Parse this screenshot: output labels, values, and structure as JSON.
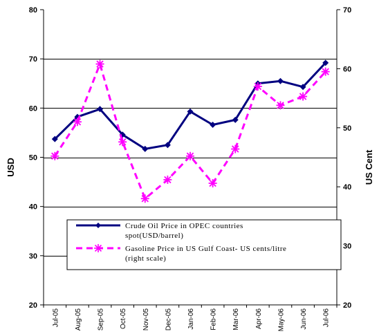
{
  "chart_data": {
    "type": "line",
    "categories": [
      "Jul-05",
      "Aug-05",
      "Sep-05",
      "Oct-05",
      "Nov-05",
      "Dec-05",
      "Jan-06",
      "Feb-06",
      "Mar-06",
      "Apr-06",
      "May-06",
      "Jun-06",
      "Jul-06"
    ],
    "categories_display": [
      "Jul-05",
      "Aug-05",
      "Sep-05",
      "Oct-05",
      "Nov-05",
      "Dec-05",
      "Jan-06",
      "Feb-06",
      "Mar-06",
      "Apr-06",
      "May-06",
      "Jun-06",
      "Jul-06"
    ],
    "ylabel": "USD",
    "y2label": "US Cent",
    "ylim": [
      20,
      80
    ],
    "y2lim": [
      20,
      70
    ],
    "yticks": [
      20,
      30,
      40,
      50,
      60,
      70,
      80
    ],
    "y2ticks": [
      20,
      30,
      40,
      50,
      60,
      70
    ],
    "grid": true,
    "legend_position": "lower-center",
    "series": [
      {
        "name": "Crude Oil Price in OPEC countries spot(USD/barrel)",
        "legend_lines": [
          "Crude Oil Price in OPEC countries",
          "spot(USD/barrel)"
        ],
        "axis": "left",
        "color": "#000080",
        "marker": "diamond",
        "style": "solid",
        "values": [
          53.7,
          58.2,
          59.8,
          54.6,
          51.7,
          52.5,
          59.3,
          56.6,
          57.6,
          65.0,
          65.5,
          64.3,
          69.2
        ]
      },
      {
        "name": "Gasoline Price in US Gulf Coast- US cents/litre (right scale)",
        "legend_lines": [
          "Gasoline Price in US Gulf Coast- US cents/litre",
          "(right scale)"
        ],
        "axis": "right",
        "color": "#ff00ff",
        "marker": "asterisk",
        "style": "dashed",
        "values": [
          45.2,
          51.0,
          60.8,
          47.6,
          38.0,
          41.2,
          45.2,
          40.6,
          46.4,
          57.0,
          53.8,
          55.3,
          59.5
        ]
      }
    ]
  }
}
